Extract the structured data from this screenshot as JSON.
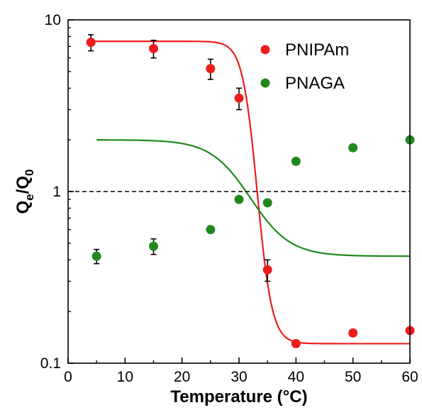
{
  "chart_data": {
    "type": "scatter",
    "xlabel": "Temperature (°C)",
    "ylabel": {
      "main1": "Q",
      "sub1": "e",
      "main2": "/Q",
      "sub2": "0"
    },
    "xlim": [
      0,
      60
    ],
    "ylim": [
      0.1,
      10
    ],
    "yscale": "log",
    "xticks": [
      0,
      10,
      20,
      30,
      40,
      50,
      60
    ],
    "xtick_labels": [
      "0",
      "10",
      "20",
      "30",
      "40",
      "50",
      "60"
    ],
    "yticks": [
      0.1,
      1,
      10
    ],
    "ytick_labels": [
      "0.1",
      "1",
      "10"
    ],
    "grid": false,
    "legend_position": "top-right",
    "reference_line": {
      "y": 1,
      "style": "dashed"
    },
    "series": [
      {
        "name": "PNIPAm",
        "color": "#ee1c1c",
        "x": [
          4,
          15,
          25,
          30,
          35,
          40,
          50,
          60
        ],
        "y": [
          7.4,
          6.8,
          5.2,
          3.5,
          0.35,
          0.13,
          0.15,
          0.155
        ],
        "error": [
          0.8,
          0.8,
          0.7,
          0.5,
          0.05,
          null,
          null,
          null
        ],
        "fit": {
          "model": "sigmoid-log",
          "low": 0.13,
          "high": 7.5,
          "center": 33.2,
          "width": 1.3
        }
      },
      {
        "name": "PNAGA",
        "color": "#1e8a1e",
        "x": [
          5,
          15,
          25,
          30,
          35,
          40,
          50,
          60
        ],
        "y": [
          0.42,
          0.48,
          0.6,
          0.9,
          0.86,
          1.5,
          1.8,
          2.0
        ],
        "error": [
          0.04,
          0.05,
          null,
          null,
          null,
          null,
          null,
          null
        ],
        "fit": {
          "model": "sigmoid-log",
          "low": 0.42,
          "high": 2.0,
          "center": 32.0,
          "width": 3.5
        }
      }
    ]
  }
}
